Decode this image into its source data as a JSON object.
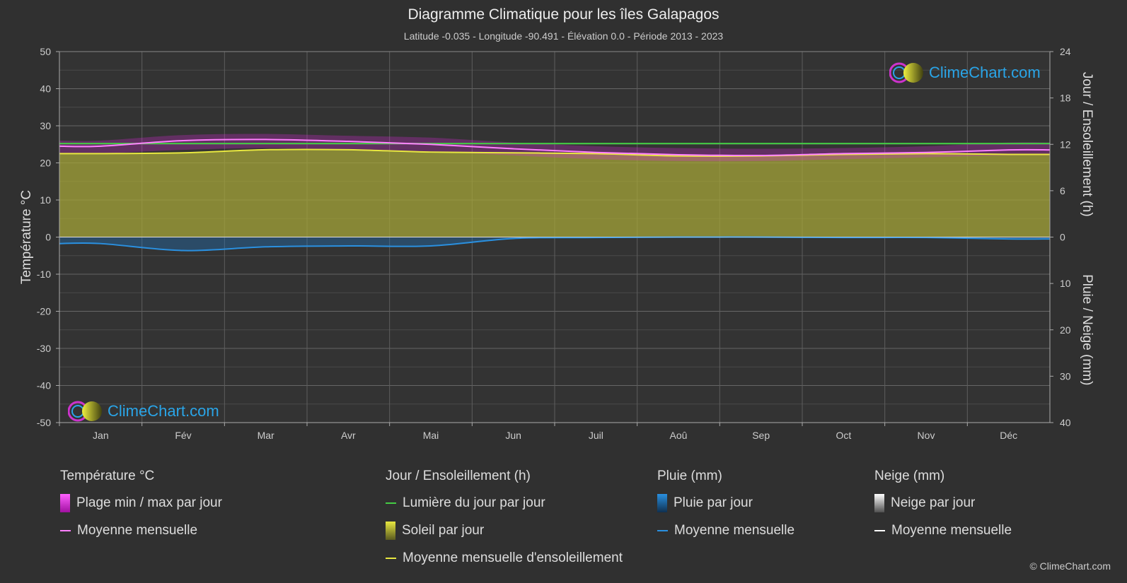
{
  "title": "Diagramme Climatique pour les îles Galapagos",
  "subtitle": "Latitude -0.035 - Longitude -90.491 - Élévation 0.0 - Période 2013 - 2023",
  "brand": "ClimeChart.com",
  "copyright": "© ClimeChart.com",
  "colors": {
    "background": "#303030",
    "temp_range": "#e028e0",
    "temp_mean": "#ff80ff",
    "daylight": "#44cc44",
    "sunshine_fill": "#a8a838",
    "sunshine_mean": "#e8e840",
    "rain": "#1e78c8",
    "rain_mean": "#2a90e0",
    "snow_mean": "#ffffff",
    "brand": "#2aa5e8"
  },
  "legend": {
    "temperature": {
      "header": "Température °C",
      "range_label": "Plage min / max par jour",
      "mean_label": "Moyenne mensuelle"
    },
    "sun": {
      "header": "Jour / Ensoleillement (h)",
      "daylight_label": "Lumière du jour par jour",
      "sunshine_label": "Soleil par jour",
      "sunshine_mean_label": "Moyenne mensuelle d'ensoleillement"
    },
    "rain": {
      "header": "Pluie (mm)",
      "daily_label": "Pluie par jour",
      "mean_label": "Moyenne mensuelle"
    },
    "snow": {
      "header": "Neige (mm)",
      "daily_label": "Neige par jour",
      "mean_label": "Moyenne mensuelle"
    }
  },
  "chart_data": {
    "type": "line",
    "categories": [
      "Jan",
      "Fév",
      "Mar",
      "Avr",
      "Mai",
      "Jun",
      "Juil",
      "Aoû",
      "Sep",
      "Oct",
      "Nov",
      "Déc"
    ],
    "y_left": {
      "label": "Température °C",
      "range": [
        -50,
        50
      ],
      "ticks": [
        "50",
        "40",
        "30",
        "20",
        "10",
        "0",
        "-10",
        "-20",
        "-30",
        "-40",
        "-50"
      ]
    },
    "y_right_top": {
      "label": "Jour / Ensoleillement (h)",
      "range": [
        0,
        24
      ],
      "ticks": [
        "24",
        "18",
        "12",
        "6",
        "0"
      ]
    },
    "y_right_bottom": {
      "label": "Pluie / Neige (mm)",
      "range": [
        0,
        40
      ],
      "ticks": [
        "10",
        "20",
        "30",
        "40"
      ]
    },
    "grid": true,
    "series": [
      {
        "name": "Moyenne mensuelle",
        "group": "Température °C",
        "axis": "temperature",
        "values": [
          24.5,
          26.0,
          26.3,
          25.8,
          25.0,
          23.8,
          22.8,
          22.2,
          22.0,
          22.5,
          22.8,
          23.5
        ]
      },
      {
        "name": "Plage min / max par jour",
        "axis": "temperature",
        "min": [
          22.5,
          23.5,
          24.0,
          23.5,
          23.0,
          22.0,
          21.0,
          20.5,
          20.5,
          21.0,
          21.5,
          22.0
        ],
        "max": [
          26.0,
          27.5,
          27.8,
          27.3,
          26.8,
          25.5,
          24.5,
          24.0,
          23.8,
          24.0,
          24.5,
          25.5
        ]
      },
      {
        "name": "Lumière du jour par jour",
        "axis": "sun_hours",
        "values": [
          12.1,
          12.1,
          12.1,
          12.1,
          12.1,
          12.1,
          12.1,
          12.1,
          12.1,
          12.1,
          12.1,
          12.1
        ]
      },
      {
        "name": "Moyenne mensuelle d'ensoleillement",
        "axis": "sun_hours",
        "values": [
          10.8,
          10.9,
          11.3,
          11.3,
          11.0,
          10.9,
          10.8,
          10.5,
          10.5,
          10.7,
          10.8,
          10.7
        ]
      },
      {
        "name": "Moyenne mensuelle",
        "group": "Pluie (mm)",
        "axis": "precip_mm",
        "values": [
          1.4,
          2.9,
          2.1,
          1.9,
          1.9,
          0.3,
          0.1,
          0.0,
          0.0,
          0.1,
          0.1,
          0.4
        ]
      },
      {
        "name": "Moyenne mensuelle",
        "group": "Neige (mm)",
        "axis": "precip_mm",
        "values": [
          0,
          0,
          0,
          0,
          0,
          0,
          0,
          0,
          0,
          0,
          0,
          0
        ]
      }
    ]
  }
}
